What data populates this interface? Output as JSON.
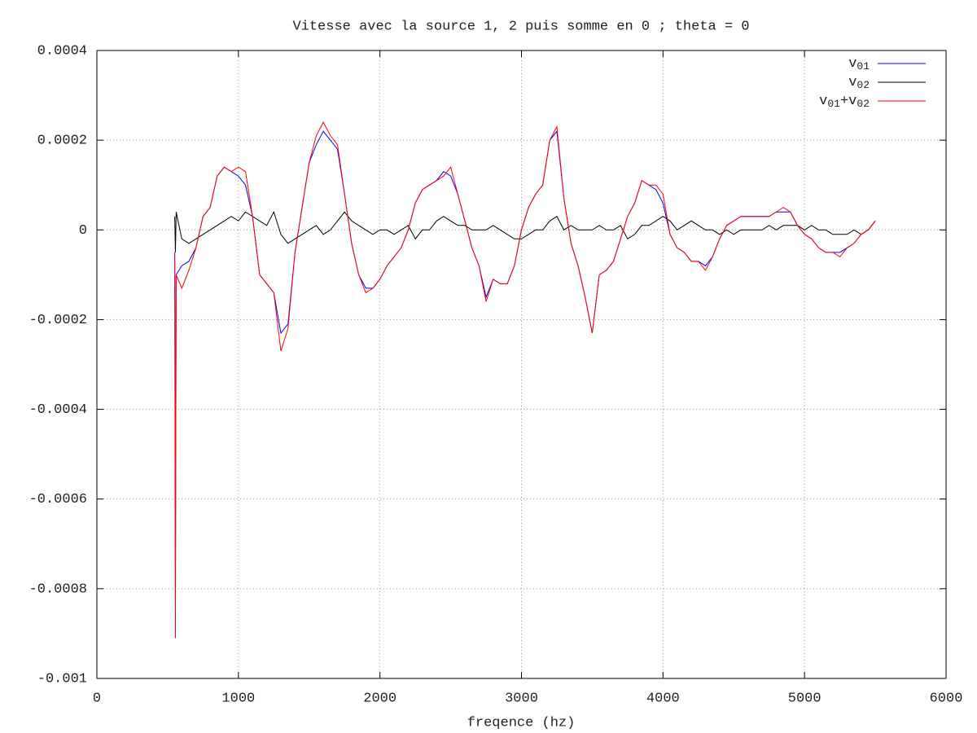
{
  "chart_data": {
    "type": "line",
    "title": "Vitesse avec la source 1, 2 puis somme en 0 ; theta = 0",
    "x_label": "freqence (hz)",
    "xlim": [
      0,
      6000
    ],
    "xticks": [
      0,
      1000,
      2000,
      3000,
      4000,
      5000,
      6000
    ],
    "ylim": [
      -0.001,
      0.0004
    ],
    "yticks": [
      0.0004,
      0.0002,
      0,
      -0.0002,
      -0.0004,
      -0.0006,
      -0.0008,
      -0.001
    ],
    "grid": true,
    "legend": "top-right",
    "x": [
      550,
      555,
      560,
      600,
      650,
      700,
      750,
      800,
      850,
      900,
      950,
      1000,
      1050,
      1100,
      1150,
      1200,
      1250,
      1300,
      1350,
      1400,
      1450,
      1500,
      1550,
      1600,
      1650,
      1700,
      1750,
      1800,
      1850,
      1900,
      1950,
      2000,
      2050,
      2100,
      2150,
      2200,
      2250,
      2300,
      2350,
      2400,
      2450,
      2500,
      2550,
      2600,
      2650,
      2700,
      2750,
      2800,
      2850,
      2900,
      2950,
      3000,
      3050,
      3100,
      3150,
      3200,
      3250,
      3300,
      3350,
      3400,
      3450,
      3500,
      3550,
      3600,
      3650,
      3700,
      3750,
      3800,
      3850,
      3900,
      3950,
      4000,
      4050,
      4100,
      4150,
      4200,
      4250,
      4300,
      4350,
      4400,
      4450,
      4500,
      4550,
      4600,
      4650,
      4700,
      4750,
      4800,
      4850,
      4900,
      4950,
      5000,
      5050,
      5100,
      5150,
      5200,
      5250,
      5300,
      5350,
      5400,
      5450,
      5500
    ],
    "series": [
      {
        "name": "v01",
        "color": "#0000ff",
        "values": [
          -5e-05,
          -0.00082,
          -0.0001,
          -8e-05,
          -7e-05,
          -4e-05,
          3e-05,
          5e-05,
          0.00012,
          0.00014,
          0.00013,
          0.00012,
          0.0001,
          3e-05,
          -0.0001,
          -0.00012,
          -0.00014,
          -0.00023,
          -0.00021,
          -5e-05,
          5e-05,
          0.00015,
          0.00019,
          0.00022,
          0.0002,
          0.00018,
          8e-05,
          -3e-05,
          -0.0001,
          -0.00013,
          -0.00013,
          -0.00011,
          -8e-05,
          -6e-05,
          -4e-05,
          0,
          6e-05,
          9e-05,
          0.0001,
          0.00011,
          0.00013,
          0.00012,
          8e-05,
          2e-05,
          -4e-05,
          -8e-05,
          -0.00015,
          -0.00011,
          -0.00012,
          -0.00012,
          -8e-05,
          0,
          5e-05,
          8e-05,
          0.0001,
          0.0002,
          0.00022,
          7e-05,
          -3e-05,
          -8e-05,
          -0.00015,
          -0.00023,
          -0.0001,
          -9e-05,
          -7e-05,
          -2e-05,
          3e-05,
          6e-05,
          0.00011,
          0.0001,
          9e-05,
          6e-05,
          -1e-05,
          -4e-05,
          -5e-05,
          -7e-05,
          -7e-05,
          -8e-05,
          -6e-05,
          -2e-05,
          1e-05,
          2e-05,
          3e-05,
          3e-05,
          3e-05,
          3e-05,
          3e-05,
          4e-05,
          4e-05,
          4e-05,
          1e-05,
          -1e-05,
          -2e-05,
          -4e-05,
          -5e-05,
          -5e-05,
          -5e-05,
          -4e-05,
          -3e-05,
          -1e-05,
          0,
          2e-05
        ]
      },
      {
        "name": "v02",
        "color": "#000000",
        "values": [
          3e-05,
          -5e-05,
          4e-05,
          -2e-05,
          -3e-05,
          -2e-05,
          -1e-05,
          0,
          1e-05,
          2e-05,
          3e-05,
          2e-05,
          4e-05,
          3e-05,
          2e-05,
          1e-05,
          4e-05,
          -1e-05,
          -3e-05,
          -2e-05,
          -1e-05,
          0,
          1e-05,
          -1e-05,
          0,
          2e-05,
          4e-05,
          2e-05,
          1e-05,
          0,
          -1e-05,
          0,
          0,
          -1e-05,
          0,
          1e-05,
          -2e-05,
          0,
          0,
          2e-05,
          3e-05,
          2e-05,
          1e-05,
          1e-05,
          0,
          0,
          0,
          1e-05,
          0,
          -1e-05,
          -2e-05,
          -2e-05,
          -1e-05,
          0,
          0,
          2e-05,
          3e-05,
          0,
          1e-05,
          0,
          0,
          0,
          1e-05,
          0,
          0,
          1e-05,
          -2e-05,
          -1e-05,
          1e-05,
          1e-05,
          2e-05,
          3e-05,
          2e-05,
          0,
          1e-05,
          2e-05,
          1e-05,
          0,
          0,
          -1e-05,
          0,
          -1e-05,
          0,
          0,
          0,
          0,
          1e-05,
          0,
          1e-05,
          1e-05,
          1e-05,
          0,
          1e-05,
          0,
          0,
          -1e-05,
          -1e-05,
          -1e-05,
          0,
          -1e-05,
          0,
          2e-05
        ]
      },
      {
        "name": "v01+v02",
        "color": "#ff0000",
        "values": [
          -5e-05,
          -0.00091,
          -0.0001,
          -0.00013,
          -9e-05,
          -4e-05,
          3e-05,
          5e-05,
          0.00012,
          0.00014,
          0.00013,
          0.00014,
          0.00013,
          3e-05,
          -0.0001,
          -0.00012,
          -0.00014,
          -0.00027,
          -0.00022,
          -5e-05,
          5e-05,
          0.00015,
          0.00021,
          0.00024,
          0.00021,
          0.00019,
          8e-05,
          -3e-05,
          -0.0001,
          -0.00014,
          -0.00013,
          -0.00011,
          -8e-05,
          -6e-05,
          -4e-05,
          0,
          6e-05,
          9e-05,
          0.0001,
          0.00011,
          0.00012,
          0.00014,
          8e-05,
          2e-05,
          -4e-05,
          -8e-05,
          -0.00016,
          -0.00011,
          -0.00012,
          -0.00012,
          -8e-05,
          0,
          5e-05,
          8e-05,
          0.0001,
          0.0002,
          0.00023,
          7e-05,
          -3e-05,
          -8e-05,
          -0.00015,
          -0.00023,
          -0.0001,
          -9e-05,
          -7e-05,
          -2e-05,
          3e-05,
          6e-05,
          0.00011,
          0.0001,
          0.0001,
          8e-05,
          -1e-05,
          -4e-05,
          -5e-05,
          -7e-05,
          -7e-05,
          -9e-05,
          -6e-05,
          -2e-05,
          1e-05,
          2e-05,
          3e-05,
          3e-05,
          3e-05,
          3e-05,
          3e-05,
          4e-05,
          5e-05,
          4e-05,
          1e-05,
          -1e-05,
          -2e-05,
          -4e-05,
          -5e-05,
          -5e-05,
          -6e-05,
          -4e-05,
          -3e-05,
          -1e-05,
          0,
          2e-05
        ]
      }
    ]
  }
}
